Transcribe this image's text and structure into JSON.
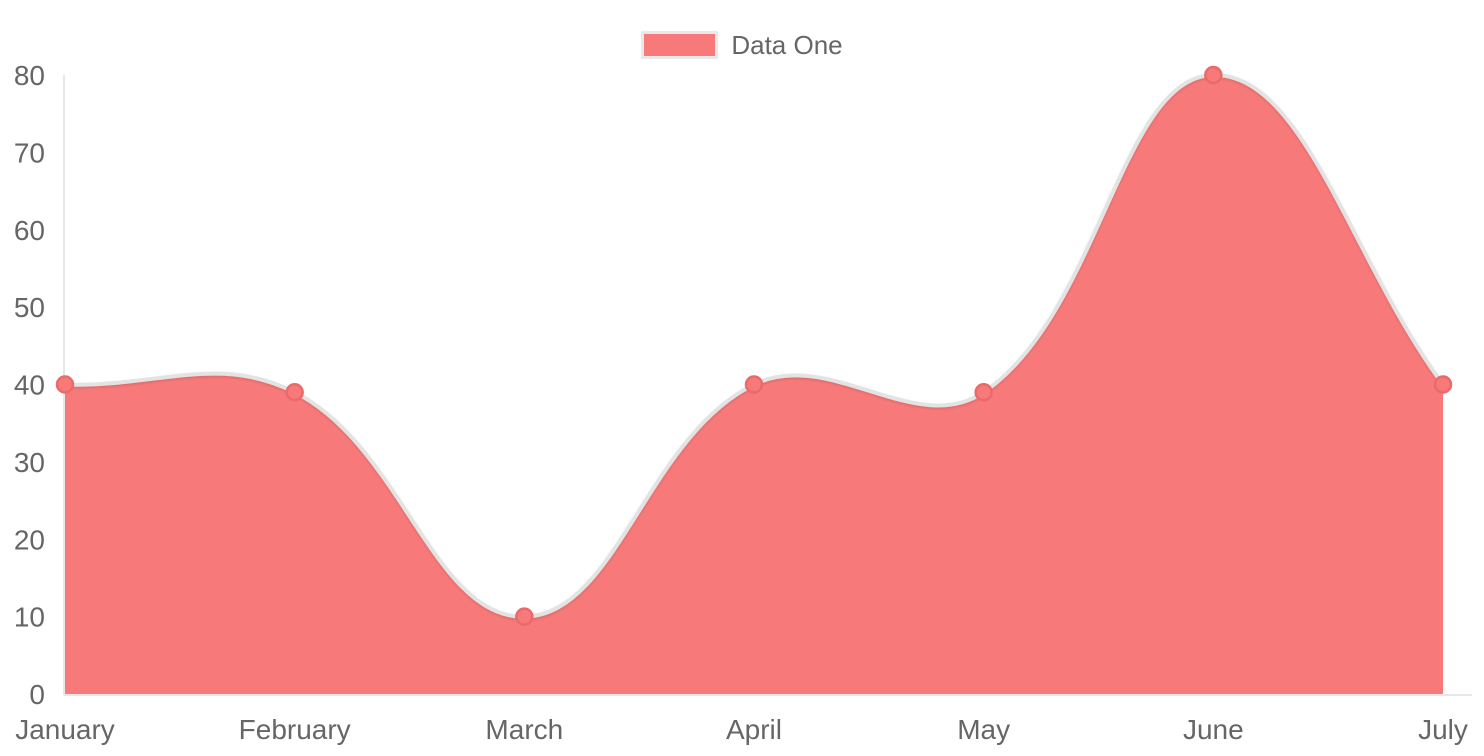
{
  "chart_data": {
    "type": "area",
    "categories": [
      "January",
      "February",
      "March",
      "April",
      "May",
      "June",
      "July"
    ],
    "series": [
      {
        "name": "Data One",
        "values": [
          40,
          39,
          10,
          40,
          39,
          80,
          40
        ]
      }
    ],
    "ylim": [
      0,
      80
    ],
    "yticks": [
      0,
      10,
      20,
      30,
      40,
      50,
      60,
      70,
      80
    ],
    "xlabel": "",
    "ylabel": "",
    "grid": "off",
    "legend_position": "top-center",
    "smooth": true,
    "colors": {
      "fill": "#f87979",
      "line": "#e3e3e3",
      "point_fill": "#f87979",
      "point_border": "#ea6a6a",
      "axis_line": "#e7e7e7",
      "tick_text": "#666666",
      "legend_text": "#666666",
      "legend_box_border": "#e9e9e9"
    }
  }
}
